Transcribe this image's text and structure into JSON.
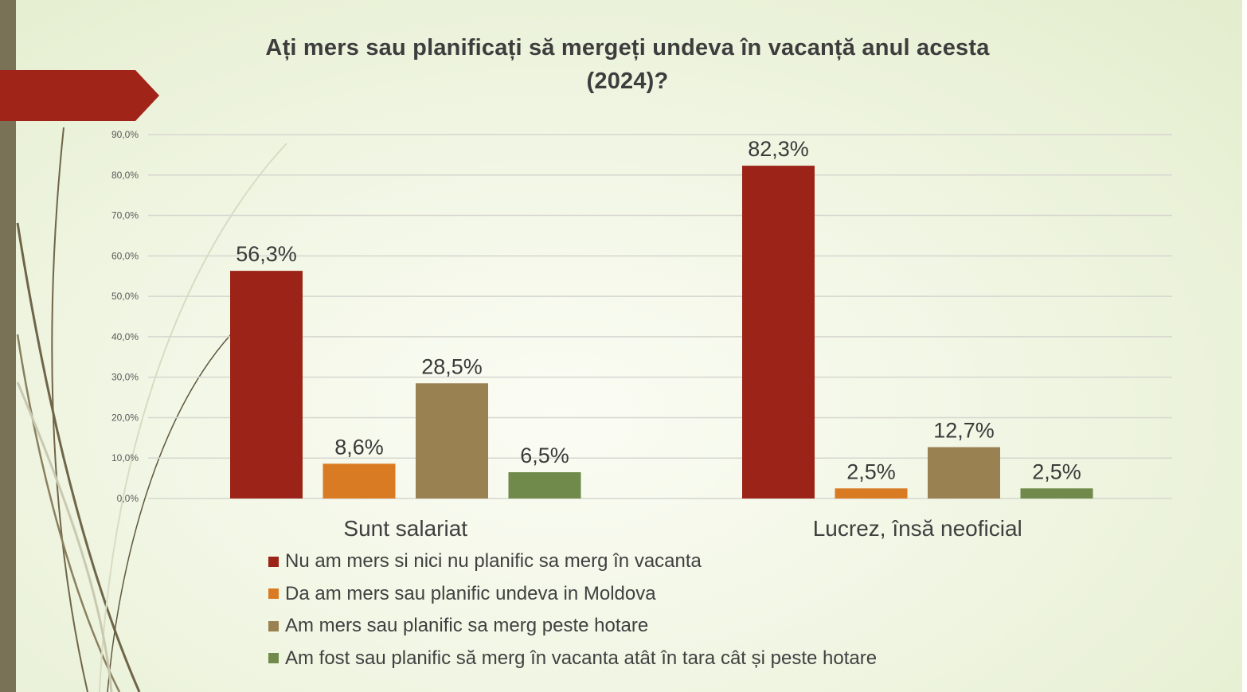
{
  "chart_data": {
    "type": "bar",
    "title": "Ați mers sau planificați să mergeți undeva în vacanță anul acesta",
    "title_line2": "(2024)?",
    "categories": [
      "Sunt salariat",
      "Lucrez, însă neoficial"
    ],
    "series": [
      {
        "name": "Nu am mers si nici nu planific sa merg în vacanta",
        "color": "#9b2317",
        "values": [
          56.3,
          82.3
        ],
        "labels": [
          "56,3%",
          "82,3%"
        ]
      },
      {
        "name": "Da am mers sau planific undeva in Moldova",
        "color": "#d97b22",
        "values": [
          8.6,
          2.5
        ],
        "labels": [
          "8,6%",
          "2,5%"
        ]
      },
      {
        "name": "Am mers sau planific sa merg peste hotare",
        "color": "#9a8152",
        "values": [
          28.5,
          12.7
        ],
        "labels": [
          "28,5%",
          "12,7%"
        ]
      },
      {
        "name": "Am fost sau planific să merg în vacanta atât în tara cât și peste hotare",
        "color": "#6f8a4a",
        "values": [
          6.5,
          2.5
        ],
        "labels": [
          "6,5%",
          "2,5%"
        ]
      }
    ],
    "ylim": [
      0,
      90
    ],
    "yticks": [
      "0,0%",
      "10,0%",
      "20,0%",
      "30,0%",
      "40,0%",
      "50,0%",
      "60,0%",
      "70,0%",
      "80,0%",
      "90,0%"
    ],
    "grid": true,
    "legend_position": "bottom"
  }
}
